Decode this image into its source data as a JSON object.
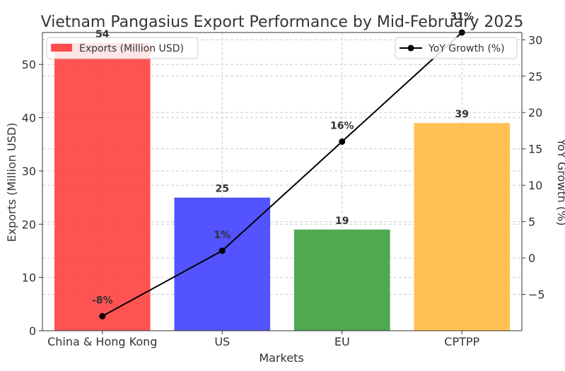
{
  "chart_data": {
    "type": "bar",
    "title": "Vietnam Pangasius Export Performance by Mid-February 2025",
    "xlabel": "Markets",
    "ylabel": "Exports (Million USD)",
    "y2label": "YoY Growth (%)",
    "categories": [
      "China & Hong Kong",
      "US",
      "EU",
      "CPTPP"
    ],
    "ylim": [
      0,
      56
    ],
    "y2lim": [
      -10,
      31
    ],
    "yticks": [
      0,
      10,
      20,
      30,
      40,
      50
    ],
    "y2ticks": [
      -5,
      0,
      5,
      10,
      15,
      20,
      25,
      30
    ],
    "grid": true,
    "series": [
      {
        "name": "Exports (Million USD)",
        "kind": "bar",
        "axis": "left",
        "values": [
          54,
          25,
          19,
          39
        ],
        "data_labels": [
          "54",
          "25",
          "19",
          "39"
        ],
        "colors": [
          "#ff4d4d",
          "#4d4dff",
          "#4aa64a",
          "#ffbf4d"
        ]
      },
      {
        "name": "YoY Growth (%)",
        "kind": "line",
        "axis": "right",
        "values": [
          -8,
          1,
          16,
          31
        ],
        "data_labels": [
          "-8%",
          "1%",
          "16%",
          "31%"
        ],
        "color": "#000000"
      }
    ],
    "legend_left_position": "top-left",
    "legend_right_position": "top-right"
  }
}
